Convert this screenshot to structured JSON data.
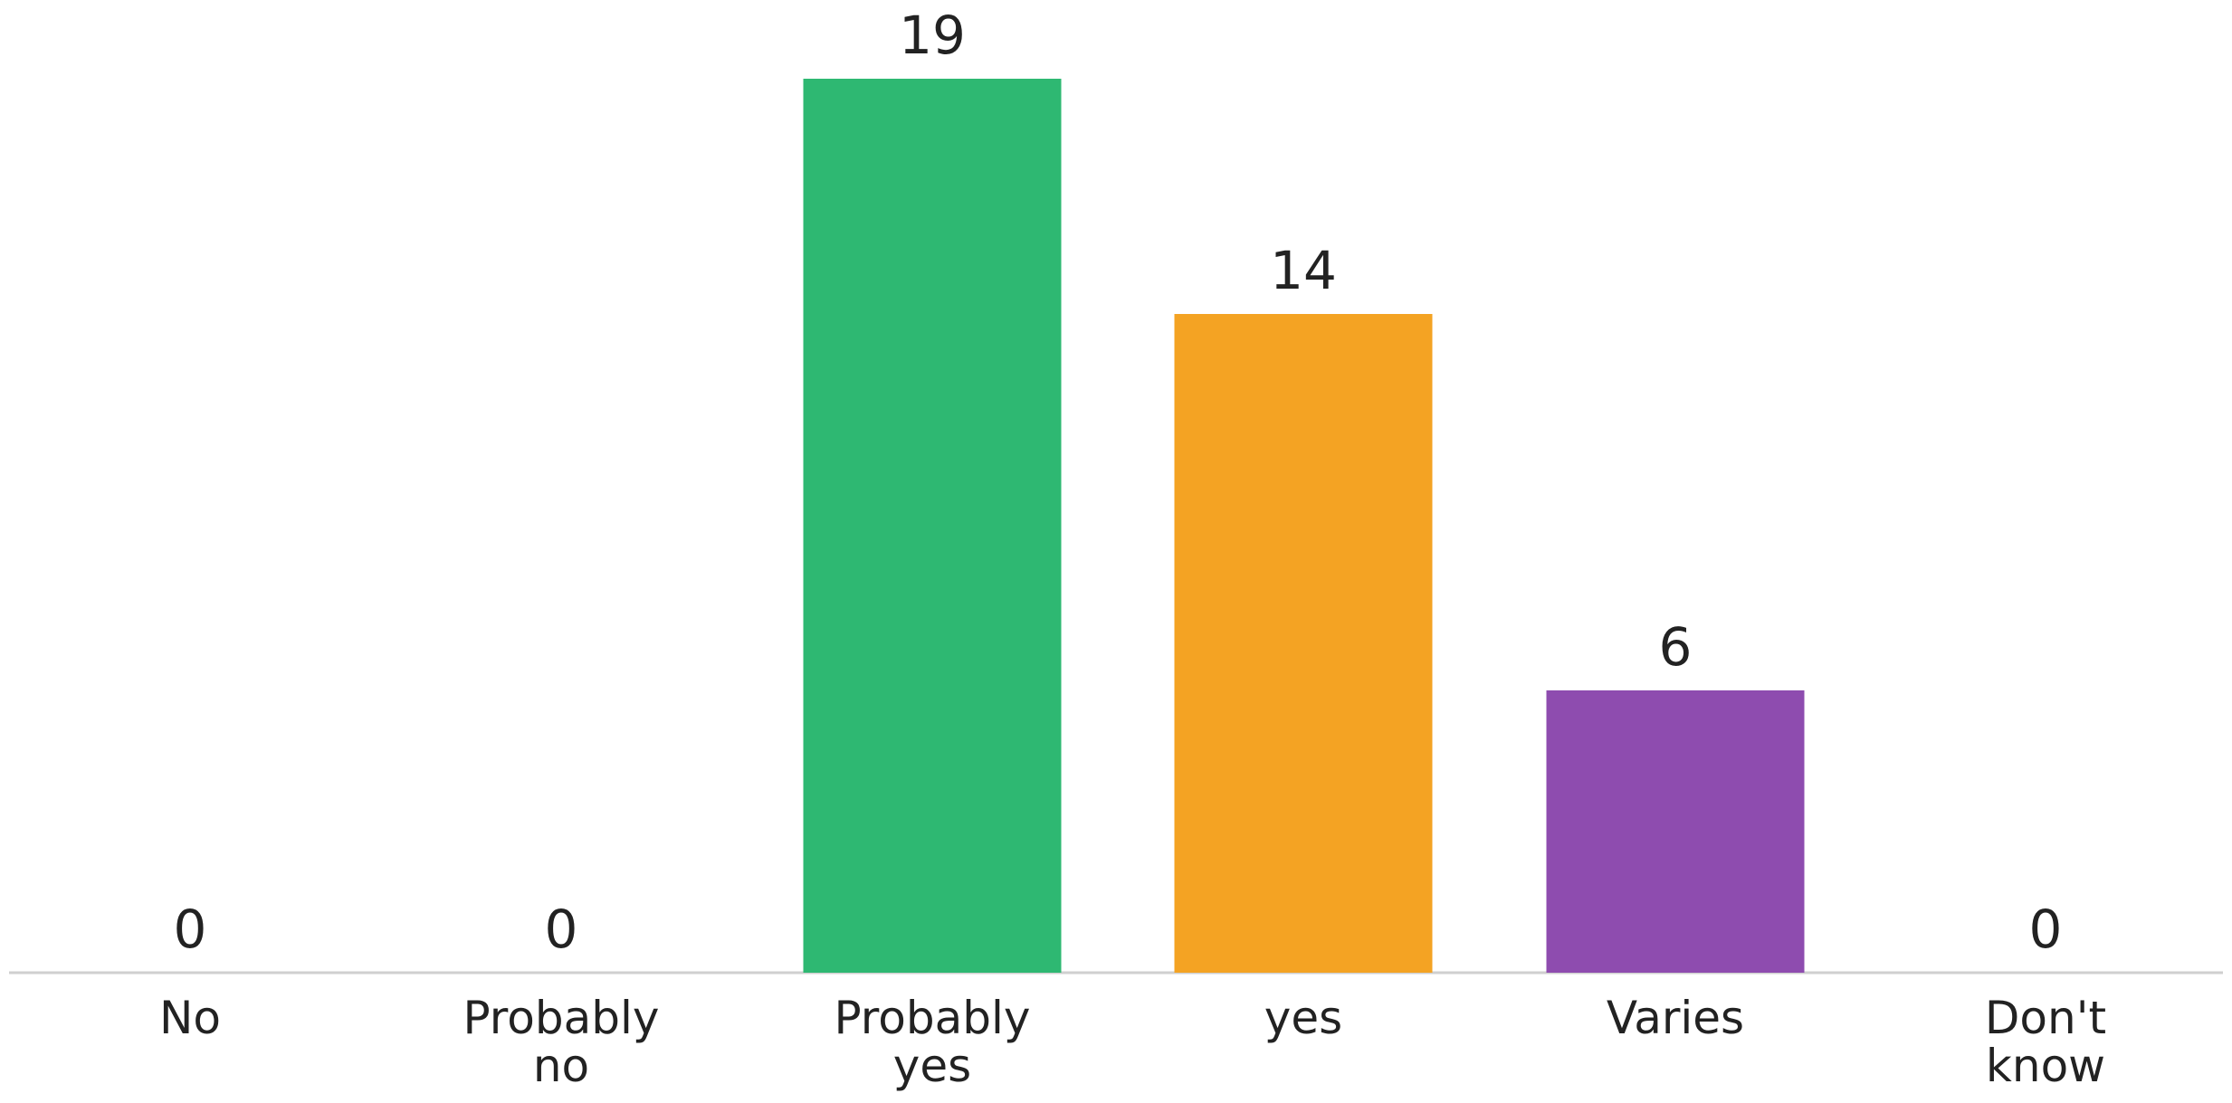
{
  "chart_data": {
    "type": "bar",
    "categories": [
      [
        "No"
      ],
      [
        "Probably",
        "no"
      ],
      [
        "Probably",
        "yes"
      ],
      [
        "yes"
      ],
      [
        "Varies"
      ],
      [
        "Don't",
        "know"
      ]
    ],
    "values": [
      0,
      0,
      19,
      14,
      6,
      0
    ],
    "colors": [
      "#2eb872",
      "#2eb872",
      "#2eb872",
      "#f4a323",
      "#8e4caf",
      "#2eb872"
    ],
    "axis_color": "#cfcfcf",
    "title": "",
    "xlabel": "",
    "ylabel": "",
    "ylim": [
      0,
      19
    ],
    "grid": false,
    "legend": "none"
  }
}
